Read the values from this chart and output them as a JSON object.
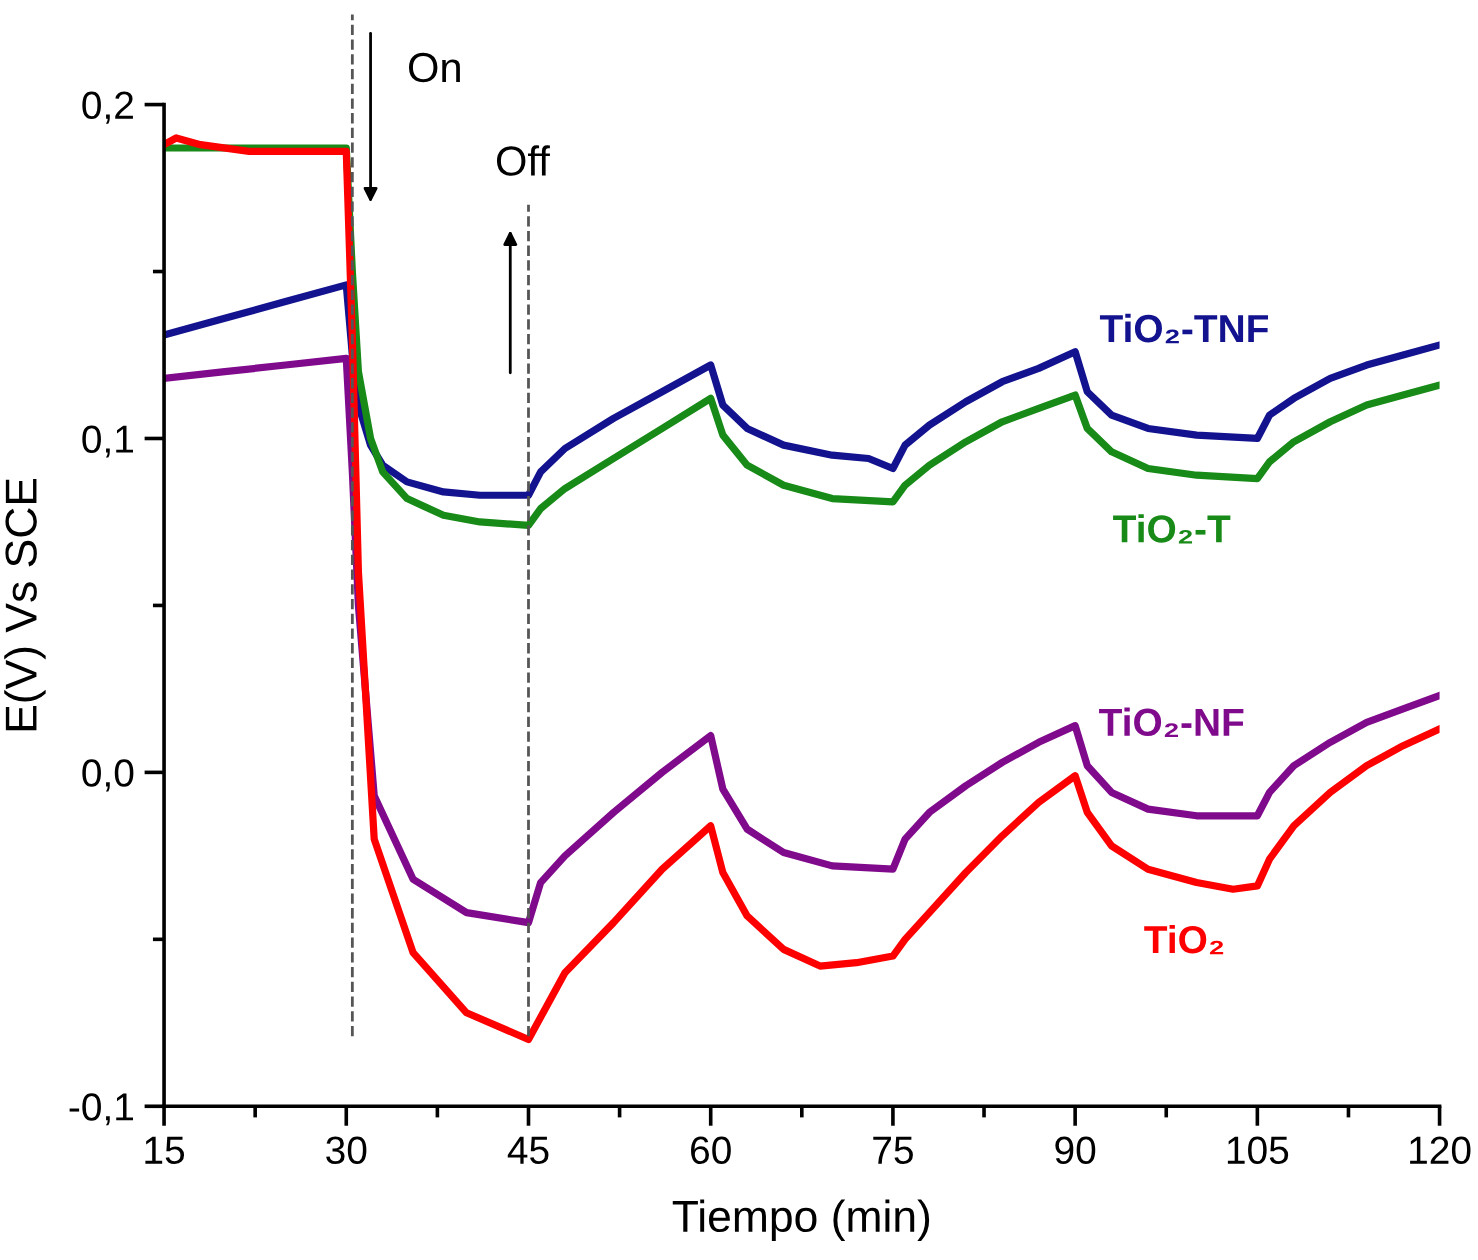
{
  "chart_data": {
    "type": "line",
    "xlabel": "Tiempo (min)",
    "ylabel": "E(V) Vs SCE",
    "xlim": [
      15,
      120
    ],
    "ylim": [
      -0.1,
      0.2
    ],
    "xticks": [
      15,
      {
        "value": 22.5,
        "label": null
      },
      30,
      {
        "value": 37.5,
        "label": null
      },
      45,
      {
        "value": 52.5,
        "label": null
      },
      60,
      {
        "value": 67.5,
        "label": null
      },
      75,
      {
        "value": 82.5,
        "label": null
      },
      90,
      {
        "value": 97.5,
        "label": null
      },
      105,
      {
        "value": 112.5,
        "label": null
      },
      120
    ],
    "yticks": [
      {
        "value": -0.1,
        "label": "-0,1"
      },
      {
        "value": -0.05,
        "label": null
      },
      {
        "value": 0.0,
        "label": "0,0"
      },
      {
        "value": 0.05,
        "label": null
      },
      {
        "value": 0.1,
        "label": "0,1"
      },
      {
        "value": 0.15,
        "label": null
      },
      {
        "value": 0.2,
        "label": "0,2"
      }
    ],
    "grid": false,
    "legend": false,
    "marker": "none",
    "line_style": "solid",
    "ref_lines": [
      {
        "axis": "x",
        "value": 30.5,
        "label": "On",
        "line_style": "dashed",
        "color": "#555555"
      },
      {
        "axis": "x",
        "value": 45,
        "label": "Off",
        "line_style": "dashed",
        "color": "#555555"
      }
    ],
    "series": [
      {
        "name": "TiO₂-TNF",
        "color": "#13138f",
        "x": [
          15,
          20,
          25,
          30,
          30.5,
          31,
          32,
          33,
          35,
          38,
          41,
          45,
          46,
          48,
          52,
          56,
          60,
          61,
          63,
          66,
          70,
          73,
          75,
          76,
          78,
          81,
          84,
          87,
          90,
          91,
          93,
          96,
          100,
          105,
          106,
          108,
          111,
          114,
          117,
          120
        ],
        "values": [
          0.131,
          0.136,
          0.141,
          0.146,
          0.125,
          0.11,
          0.098,
          0.092,
          0.087,
          0.084,
          0.083,
          0.083,
          0.09,
          0.097,
          0.106,
          0.114,
          0.122,
          0.11,
          0.103,
          0.098,
          0.095,
          0.094,
          0.091,
          0.098,
          0.104,
          0.111,
          0.117,
          0.121,
          0.126,
          0.114,
          0.107,
          0.103,
          0.101,
          0.1,
          0.107,
          0.112,
          0.118,
          0.122,
          0.125,
          0.128
        ]
      },
      {
        "name": "TiO₂-T",
        "color": "#178a17",
        "x": [
          15,
          20,
          25,
          30,
          30.5,
          31,
          32,
          33,
          35,
          38,
          41,
          45,
          46,
          48,
          52,
          56,
          60,
          61,
          63,
          66,
          70,
          75,
          76,
          78,
          81,
          84,
          87,
          90,
          91,
          93,
          96,
          100,
          105,
          106,
          108,
          111,
          114,
          117,
          120
        ],
        "values": [
          0.187,
          0.187,
          0.187,
          0.187,
          0.15,
          0.12,
          0.1,
          0.09,
          0.082,
          0.077,
          0.075,
          0.074,
          0.079,
          0.085,
          0.094,
          0.103,
          0.112,
          0.101,
          0.092,
          0.086,
          0.082,
          0.081,
          0.086,
          0.092,
          0.099,
          0.105,
          0.109,
          0.113,
          0.103,
          0.096,
          0.091,
          0.089,
          0.088,
          0.093,
          0.099,
          0.105,
          0.11,
          0.113,
          0.116
        ]
      },
      {
        "name": "TiO₂-NF",
        "color": "#800a8c",
        "x": [
          15,
          20,
          25,
          30,
          30.5,
          31,
          32.3,
          35.5,
          39.9,
          45,
          46,
          48,
          52,
          56,
          60,
          61,
          63,
          66,
          70,
          75,
          76,
          78,
          81,
          84,
          87,
          90,
          91,
          93,
          96,
          100,
          105,
          106,
          108,
          111,
          114,
          117,
          120
        ],
        "values": [
          0.118,
          0.12,
          0.122,
          0.124,
          0.09,
          0.05,
          -0.007,
          -0.032,
          -0.042,
          -0.045,
          -0.033,
          -0.025,
          -0.012,
          0.0,
          0.011,
          -0.005,
          -0.017,
          -0.024,
          -0.028,
          -0.029,
          -0.02,
          -0.012,
          -0.004,
          0.003,
          0.009,
          0.014,
          0.002,
          -0.006,
          -0.011,
          -0.013,
          -0.013,
          -0.006,
          0.002,
          0.009,
          0.015,
          0.019,
          0.023
        ]
      },
      {
        "name": "TiO₂",
        "color": "#ff0000",
        "x": [
          15,
          16,
          18,
          22,
          26,
          30,
          30.5,
          31,
          32.3,
          35.5,
          39.9,
          45,
          48,
          52,
          56,
          60,
          61,
          63,
          66,
          69,
          72,
          75,
          76,
          78,
          81,
          84,
          87,
          90,
          91,
          93,
          96,
          100,
          103,
          105,
          106,
          108,
          111,
          114,
          117,
          120
        ],
        "values": [
          0.188,
          0.19,
          0.188,
          0.186,
          0.186,
          0.186,
          0.13,
          0.06,
          -0.02,
          -0.054,
          -0.072,
          -0.08,
          -0.06,
          -0.045,
          -0.029,
          -0.016,
          -0.03,
          -0.043,
          -0.053,
          -0.058,
          -0.057,
          -0.055,
          -0.05,
          -0.042,
          -0.03,
          -0.019,
          -0.009,
          -0.001,
          -0.012,
          -0.022,
          -0.029,
          -0.033,
          -0.035,
          -0.034,
          -0.026,
          -0.016,
          -0.006,
          0.002,
          0.008,
          0.013
        ]
      }
    ]
  }
}
